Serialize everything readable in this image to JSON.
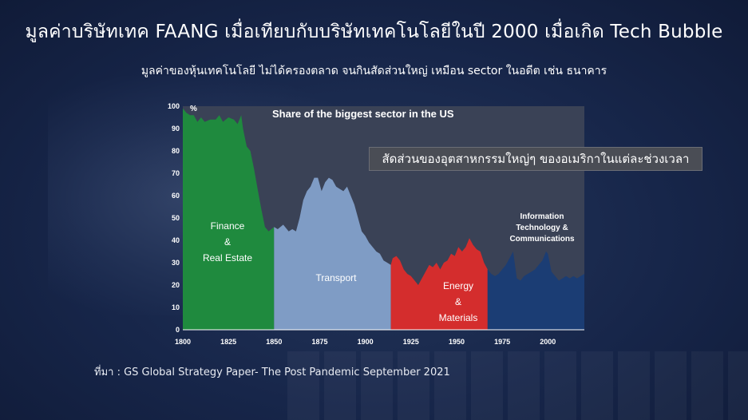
{
  "header": {
    "title": "มูลค่าบริษัทเทค FAANG เมื่อเทียบกับบริษัทเทคโนโลยีในปี 2000 เมื่อเกิด Tech Bubble",
    "subtitle": "มูลค่าของหุ้นเทคโนโลยี ไม่ได้ครองตลาด จนกินสัดส่วนใหญ่ เหมือน sector ในอดีต เช่น ธนาคาร"
  },
  "callout": "สัดส่วนของอุตสาหกรรมใหญ่ๆ ของอเมริกาในแต่ละช่วงเวลา",
  "source": "ที่มา : GS Global Strategy Paper- The Post Pandemic September 2021",
  "colors": {
    "finance": "#1f8a3e",
    "transport": "#7f9cc5",
    "energy": "#d42d2d",
    "tech": "#1b3d74",
    "background": "#17264a"
  },
  "chart_data": {
    "type": "area",
    "title": "Share of the biggest sector in the US",
    "ylabel": "%",
    "xlim": [
      1800,
      2020
    ],
    "ylim": [
      0,
      100
    ],
    "xticks": [
      1800,
      1825,
      1850,
      1875,
      1900,
      1925,
      1950,
      1975,
      2000
    ],
    "yticks": [
      0,
      10,
      20,
      30,
      40,
      50,
      60,
      70,
      80,
      90,
      100
    ],
    "points": [
      [
        1800,
        99
      ],
      [
        1802,
        97
      ],
      [
        1804,
        96
      ],
      [
        1806,
        96
      ],
      [
        1808,
        93
      ],
      [
        1810,
        95
      ],
      [
        1812,
        93
      ],
      [
        1815,
        94
      ],
      [
        1818,
        94
      ],
      [
        1820,
        96
      ],
      [
        1822,
        93
      ],
      [
        1825,
        95
      ],
      [
        1828,
        94
      ],
      [
        1830,
        92
      ],
      [
        1832,
        96
      ],
      [
        1833,
        90
      ],
      [
        1835,
        82
      ],
      [
        1837,
        80
      ],
      [
        1839,
        72
      ],
      [
        1841,
        63
      ],
      [
        1843,
        54
      ],
      [
        1845,
        46
      ],
      [
        1847,
        44
      ],
      [
        1850,
        46
      ],
      [
        1852,
        45
      ],
      [
        1855,
        47
      ],
      [
        1858,
        44
      ],
      [
        1860,
        45
      ],
      [
        1862,
        44
      ],
      [
        1864,
        50
      ],
      [
        1866,
        58
      ],
      [
        1868,
        62
      ],
      [
        1870,
        64
      ],
      [
        1872,
        68
      ],
      [
        1874,
        68
      ],
      [
        1876,
        62
      ],
      [
        1878,
        66
      ],
      [
        1880,
        68
      ],
      [
        1882,
        67
      ],
      [
        1884,
        64
      ],
      [
        1886,
        63
      ],
      [
        1888,
        62
      ],
      [
        1890,
        64
      ],
      [
        1892,
        60
      ],
      [
        1894,
        56
      ],
      [
        1896,
        50
      ],
      [
        1898,
        44
      ],
      [
        1900,
        42
      ],
      [
        1902,
        39
      ],
      [
        1904,
        37
      ],
      [
        1906,
        35
      ],
      [
        1908,
        34
      ],
      [
        1910,
        31
      ],
      [
        1912,
        30
      ],
      [
        1914,
        29
      ],
      [
        1915,
        32
      ],
      [
        1917,
        33
      ],
      [
        1919,
        31
      ],
      [
        1921,
        27
      ],
      [
        1923,
        25
      ],
      [
        1925,
        24
      ],
      [
        1927,
        22
      ],
      [
        1929,
        20
      ],
      [
        1931,
        23
      ],
      [
        1933,
        26
      ],
      [
        1935,
        29
      ],
      [
        1937,
        28
      ],
      [
        1939,
        30
      ],
      [
        1941,
        27
      ],
      [
        1943,
        30
      ],
      [
        1945,
        31
      ],
      [
        1947,
        34
      ],
      [
        1949,
        33
      ],
      [
        1951,
        37
      ],
      [
        1953,
        35
      ],
      [
        1955,
        37
      ],
      [
        1957,
        41
      ],
      [
        1959,
        38
      ],
      [
        1961,
        36
      ],
      [
        1963,
        35
      ],
      [
        1965,
        30
      ],
      [
        1967,
        27
      ],
      [
        1969,
        25
      ],
      [
        1971,
        24
      ],
      [
        1973,
        25
      ],
      [
        1975,
        27
      ],
      [
        1977,
        29
      ],
      [
        1979,
        32
      ],
      [
        1981,
        35
      ],
      [
        1983,
        23
      ],
      [
        1985,
        22
      ],
      [
        1987,
        24
      ],
      [
        1989,
        25
      ],
      [
        1991,
        26
      ],
      [
        1993,
        27
      ],
      [
        1995,
        29
      ],
      [
        1997,
        31
      ],
      [
        1999,
        35
      ],
      [
        2000,
        34
      ],
      [
        2002,
        26
      ],
      [
        2004,
        24
      ],
      [
        2006,
        22
      ],
      [
        2008,
        23
      ],
      [
        2010,
        24
      ],
      [
        2012,
        23
      ],
      [
        2014,
        24
      ],
      [
        2016,
        23
      ],
      [
        2018,
        24
      ],
      [
        2020,
        25
      ]
    ],
    "segments": [
      {
        "sector": "Finance & Real Estate",
        "from": 1800,
        "to": 1850,
        "color": "#1f8a3e"
      },
      {
        "sector": "Transport",
        "from": 1850,
        "to": 1914,
        "color": "#7f9cc5"
      },
      {
        "sector": "Energy & Materials",
        "from": 1914,
        "to": 1967,
        "color": "#d42d2d"
      },
      {
        "sector": "Information Technology & Communications",
        "from": 1967,
        "to": 2020,
        "color": "#1b3d74"
      }
    ],
    "region_labels": {
      "finance": [
        "Finance",
        "&",
        "Real Estate"
      ],
      "transport": [
        "Transport"
      ],
      "energy": [
        "Energy",
        "&",
        "Materials"
      ],
      "tech": [
        "Information",
        "Technology &",
        "Communications"
      ]
    }
  }
}
